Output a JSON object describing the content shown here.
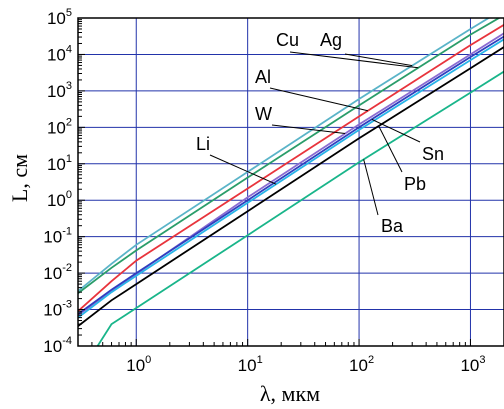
{
  "chart_data": {
    "type": "line",
    "xlabel": "λ, мкм",
    "ylabel": "L, см",
    "xscale": "log",
    "yscale": "log",
    "xlim": [
      0.3,
      2000
    ],
    "ylim": [
      0.0001,
      100000
    ],
    "grid": true,
    "x_ticks": [
      {
        "base": "10",
        "exp": "0"
      },
      {
        "base": "10",
        "exp": "1"
      },
      {
        "base": "10",
        "exp": "2"
      },
      {
        "base": "10",
        "exp": "3"
      }
    ],
    "y_ticks": [
      {
        "base": "10",
        "exp": "-4"
      },
      {
        "base": "10",
        "exp": "-3"
      },
      {
        "base": "10",
        "exp": "-2"
      },
      {
        "base": "10",
        "exp": "-1"
      },
      {
        "base": "10",
        "exp": "0"
      },
      {
        "base": "10",
        "exp": "1"
      },
      {
        "base": "10",
        "exp": "2"
      },
      {
        "base": "10",
        "exp": "3"
      },
      {
        "base": "10",
        "exp": "4"
      },
      {
        "base": "10",
        "exp": "5"
      }
    ],
    "series": [
      {
        "name": "Ag",
        "color": "#5ab4c8",
        "points": [
          [
            0.3,
            0.0032
          ],
          [
            0.6,
            0.018
          ],
          [
            1,
            0.06
          ],
          [
            10,
            6
          ],
          [
            100,
            600
          ],
          [
            1000,
            50000
          ],
          [
            2000,
            180000
          ]
        ]
      },
      {
        "name": "Cu",
        "color": "#2a9d6a",
        "points": [
          [
            0.3,
            0.0028
          ],
          [
            0.6,
            0.014
          ],
          [
            1,
            0.042
          ],
          [
            10,
            4.2
          ],
          [
            100,
            400
          ],
          [
            1000,
            35000
          ],
          [
            2000,
            120000
          ]
        ]
      },
      {
        "name": "Al",
        "color": "#e8343c",
        "points": [
          [
            0.3,
            0.0009
          ],
          [
            0.6,
            0.006
          ],
          [
            1,
            0.022
          ],
          [
            10,
            2.1
          ],
          [
            100,
            200
          ],
          [
            1000,
            18000
          ],
          [
            2000,
            65000
          ]
        ]
      },
      {
        "name": "W",
        "color": "#8b6bd1",
        "points": [
          [
            0.3,
            0.0007
          ],
          [
            0.6,
            0.0033
          ],
          [
            1,
            0.0095
          ],
          [
            10,
            1.2
          ],
          [
            100,
            120
          ],
          [
            1000,
            10000
          ],
          [
            2000,
            38000
          ]
        ]
      },
      {
        "name": "Sn",
        "color": "#2f3fbf",
        "points": [
          [
            0.3,
            0.00075
          ],
          [
            0.6,
            0.0035
          ],
          [
            1,
            0.01
          ],
          [
            10,
            1.0
          ],
          [
            100,
            100
          ],
          [
            1000,
            8500
          ],
          [
            2000,
            31000
          ]
        ]
      },
      {
        "name": "Li",
        "color": "#27b4e8",
        "points": [
          [
            0.3,
            0.0006
          ],
          [
            0.6,
            0.003
          ],
          [
            1,
            0.0085
          ],
          [
            10,
            0.85
          ],
          [
            100,
            85
          ],
          [
            1000,
            7000
          ],
          [
            2000,
            26000
          ]
        ]
      },
      {
        "name": "Pb",
        "color": "#000000",
        "points": [
          [
            0.3,
            0.00035
          ],
          [
            0.6,
            0.0018
          ],
          [
            1,
            0.005
          ],
          [
            10,
            0.5
          ],
          [
            100,
            50
          ],
          [
            1000,
            4200
          ],
          [
            2000,
            16000
          ]
        ]
      },
      {
        "name": "Ba",
        "color": "#19b58a",
        "points": [
          [
            0.45,
            0.0001
          ],
          [
            0.6,
            0.0004
          ],
          [
            1,
            0.0011
          ],
          [
            10,
            0.11
          ],
          [
            100,
            11
          ],
          [
            1000,
            900
          ],
          [
            2000,
            3400
          ]
        ]
      }
    ],
    "annotations": [
      {
        "text": "Cu",
        "series": "Cu"
      },
      {
        "text": "Ag",
        "series": "Ag"
      },
      {
        "text": "Al",
        "series": "Al"
      },
      {
        "text": "W",
        "series": "W"
      },
      {
        "text": "Li",
        "series": "Li"
      },
      {
        "text": "Sn",
        "series": "Sn"
      },
      {
        "text": "Pb",
        "series": "Pb"
      },
      {
        "text": "Ba",
        "series": "Ba"
      }
    ]
  }
}
